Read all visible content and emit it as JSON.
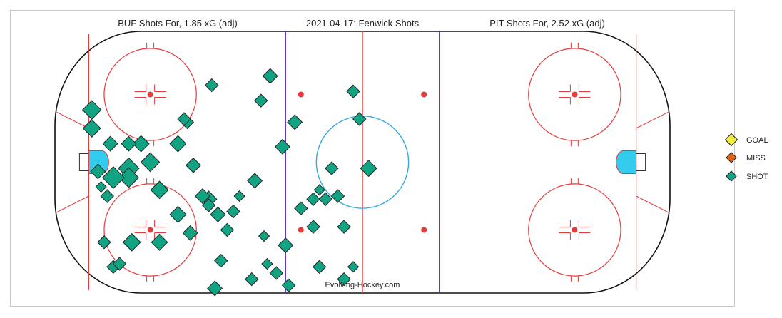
{
  "chart_data": {
    "type": "scatter",
    "titles": {
      "left": "BUF Shots For, 1.85 xG (adj)",
      "center": "2021-04-17:  Fenwick Shots",
      "right": "PIT Shots For, 2.52 xG (adj)"
    },
    "watermark": "Evolving-Hockey.com",
    "legend": [
      {
        "label": "GOAL",
        "color": "#f1ec3f"
      },
      {
        "label": "MISS",
        "color": "#e0640e"
      },
      {
        "label": "SHOT",
        "color": "#12a383"
      }
    ],
    "colors": {
      "rink_line": "#e33b3b",
      "blue_line": "#5533bb",
      "crease": "#33ccee",
      "faceoff_circle_center": "#e33b3b",
      "center_circle": "#33aadd"
    },
    "series": [
      {
        "name": "BUF",
        "points": [
          {
            "x": -88,
            "y": 17,
            "type": "SHOT",
            "xg": 0.06
          },
          {
            "x": -85,
            "y": -8,
            "type": "SHOT",
            "xg": 0.01
          },
          {
            "x": -84,
            "y": -26,
            "type": "SHOT",
            "xg": 0.02
          },
          {
            "x": -81,
            "y": -34,
            "type": "SHOT",
            "xg": 0.02
          },
          {
            "x": -82,
            "y": 6,
            "type": "SHOT",
            "xg": 0.03
          },
          {
            "x": -79,
            "y": -33,
            "type": "SHOT",
            "xg": 0.02
          },
          {
            "x": -76,
            "y": -2,
            "type": "SHOT",
            "xg": 0.08
          },
          {
            "x": -76,
            "y": -5,
            "type": "SHOT",
            "xg": 0.07
          },
          {
            "x": -75,
            "y": -26,
            "type": "SHOT",
            "xg": 0.05
          },
          {
            "x": -66,
            "y": -26,
            "type": "SHOT",
            "xg": 0.04
          },
          {
            "x": -56,
            "y": -23,
            "type": "SHOT",
            "xg": 0.03
          },
          {
            "x": -55,
            "y": -1,
            "type": "SHOT",
            "xg": 0.03
          },
          {
            "x": -50,
            "y": -12,
            "type": "SHOT",
            "xg": 0.04
          },
          {
            "x": -48,
            "y": -41,
            "type": "SHOT",
            "xg": 0.03
          },
          {
            "x": -47,
            "y": -17,
            "type": "SHOT",
            "xg": 0.03
          },
          {
            "x": -44,
            "y": -22,
            "type": "SHOT",
            "xg": 0.02
          },
          {
            "x": -42,
            "y": -16,
            "type": "SHOT",
            "xg": 0.02
          },
          {
            "x": -40,
            "y": -11,
            "type": "SHOT",
            "xg": 0.01
          },
          {
            "x": -35,
            "y": -6,
            "type": "SHOT",
            "xg": 0.03
          },
          {
            "x": -33,
            "y": 20,
            "type": "SHOT",
            "xg": 0.02
          },
          {
            "x": -32,
            "y": -24,
            "type": "SHOT",
            "xg": 0.01
          },
          {
            "x": -31,
            "y": -33,
            "type": "SHOT",
            "xg": 0.01
          },
          {
            "x": -30,
            "y": 28,
            "type": "SHOT",
            "xg": 0.03
          },
          {
            "x": -28,
            "y": -36,
            "type": "SHOT",
            "xg": 0.02
          },
          {
            "x": -25,
            "y": -27,
            "type": "SHOT",
            "xg": 0.03
          },
          {
            "x": -22,
            "y": 13,
            "type": "SHOT",
            "xg": 0.03
          },
          {
            "x": -26,
            "y": 5,
            "type": "SHOT",
            "xg": 0.03
          },
          {
            "x": -20,
            "y": -15,
            "type": "SHOT",
            "xg": 0.02
          },
          {
            "x": -16,
            "y": -21,
            "type": "SHOT",
            "xg": 0.02
          },
          {
            "x": -14,
            "y": -34,
            "type": "SHOT",
            "xg": 0.02
          },
          {
            "x": -12,
            "y": -12,
            "type": "SHOT",
            "xg": 0.02
          },
          {
            "x": -10,
            "y": -2,
            "type": "SHOT",
            "xg": 0.02
          },
          {
            "x": -8,
            "y": -11,
            "type": "SHOT",
            "xg": 0.02
          },
          {
            "x": -6,
            "y": -38,
            "type": "SHOT",
            "xg": 0.02
          },
          {
            "x": -3,
            "y": -34,
            "type": "SHOT",
            "xg": 0.01
          },
          {
            "x": 2,
            "y": -2,
            "type": "SHOT",
            "xg": 0.04
          },
          {
            "x": -3,
            "y": 23,
            "type": "SHOT",
            "xg": 0.02
          },
          {
            "x": -6,
            "y": -21,
            "type": "SHOT",
            "xg": 0.02
          },
          {
            "x": -14,
            "y": -9,
            "type": "SHOT",
            "xg": 0.01
          },
          {
            "x": -1,
            "y": 14,
            "type": "SHOT",
            "xg": 0.02
          },
          {
            "x": -16,
            "y": -12,
            "type": "SHOT",
            "xg": 0.02
          },
          {
            "x": -69,
            "y": 0,
            "type": "SHOT",
            "xg": 0.06
          },
          {
            "x": -72,
            "y": 6,
            "type": "SHOT",
            "xg": 0.04
          },
          {
            "x": -60,
            "y": 6,
            "type": "SHOT",
            "xg": 0.04
          },
          {
            "x": -52,
            "y": -11,
            "type": "SHOT",
            "xg": 0.03
          },
          {
            "x": -49,
            "y": 25,
            "type": "SHOT",
            "xg": 0.02
          },
          {
            "x": -46,
            "y": -32,
            "type": "SHOT",
            "xg": 0.02
          },
          {
            "x": -36,
            "y": -38,
            "type": "SHOT",
            "xg": 0.02
          },
          {
            "x": -57,
            "y": 13,
            "type": "SHOT",
            "xg": 0.02
          },
          {
            "x": -24,
            "y": -40,
            "type": "SHOT",
            "xg": 0.02
          },
          {
            "x": -66,
            "y": -9,
            "type": "SHOT",
            "xg": 0.05
          },
          {
            "x": -60,
            "y": -17,
            "type": "SHOT",
            "xg": 0.04
          },
          {
            "x": -50,
            "y": -14,
            "type": "SHOT",
            "xg": 0.02
          },
          {
            "x": -58,
            "y": 14,
            "type": "SHOT",
            "xg": 0.02
          },
          {
            "x": -81,
            "y": -5,
            "type": "SHOT",
            "xg": 0.09
          },
          {
            "x": -88,
            "y": 11,
            "type": "SHOT",
            "xg": 0.05
          },
          {
            "x": -83,
            "y": -11,
            "type": "SHOT",
            "xg": 0.02
          },
          {
            "x": -86,
            "y": -3,
            "type": "SHOT",
            "xg": 0.03
          },
          {
            "x": -76,
            "y": 6,
            "type": "SHOT",
            "xg": 0.03
          }
        ]
      },
      {
        "name": "PIT",
        "points": []
      }
    ]
  }
}
